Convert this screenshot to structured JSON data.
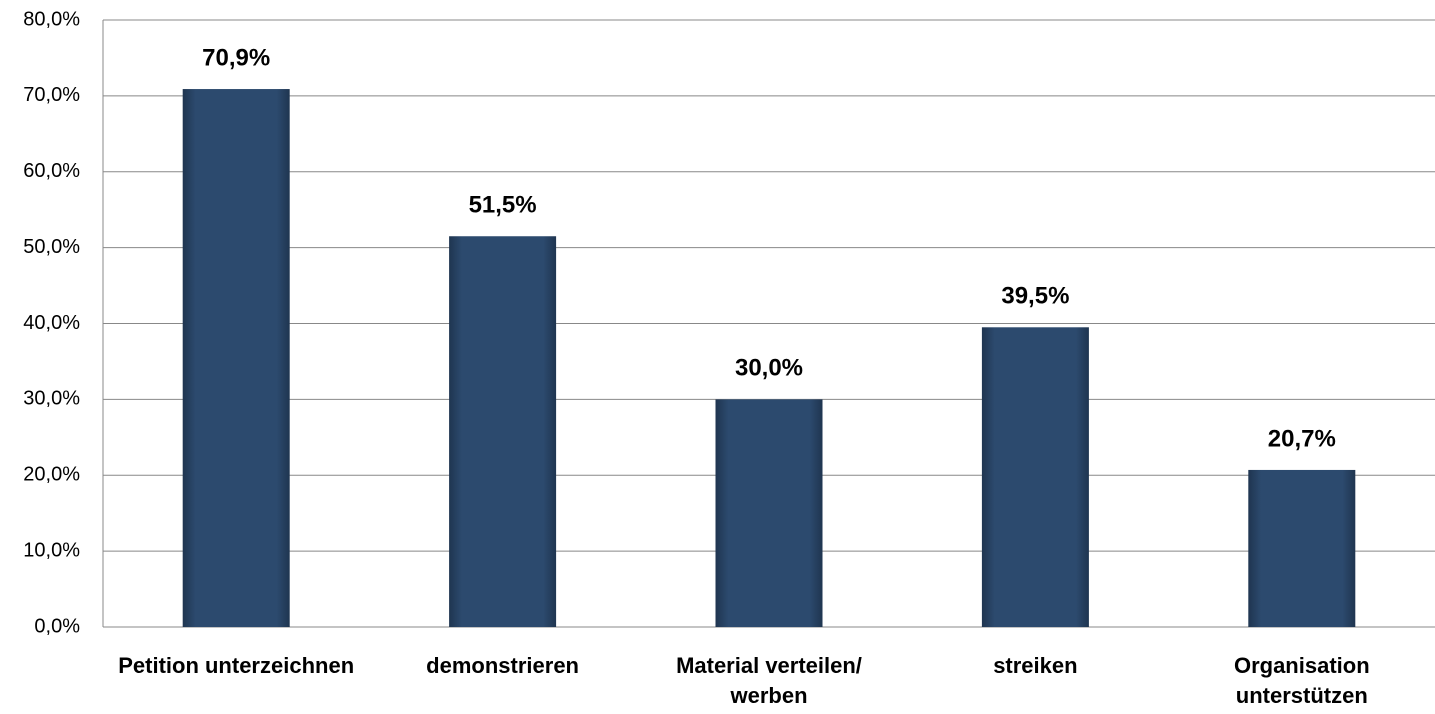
{
  "chart_data": {
    "type": "bar",
    "categories": [
      "Petition unterzeichnen",
      "demonstrieren",
      "Material verteilen/ werben",
      "streiken",
      "Organisation unterstützen"
    ],
    "values": [
      70.9,
      51.5,
      30.0,
      39.5,
      20.7
    ],
    "value_labels": [
      "70,9%",
      "51,5%",
      "30,0%",
      "39,5%",
      "20,7%"
    ],
    "color": "#2c4a6e",
    "ylim": [
      0,
      80
    ],
    "yticks": [
      {
        "value": 0,
        "label": "0,0%"
      },
      {
        "value": 10,
        "label": "10,0%"
      },
      {
        "value": 20,
        "label": "20,0%"
      },
      {
        "value": 30,
        "label": "30,0%"
      },
      {
        "value": 40,
        "label": "40,0%"
      },
      {
        "value": 50,
        "label": "50,0%"
      },
      {
        "value": 60,
        "label": "60,0%"
      },
      {
        "value": 70,
        "label": "70,0%"
      },
      {
        "value": 80,
        "label": "80,0%"
      }
    ],
    "grid": true
  }
}
